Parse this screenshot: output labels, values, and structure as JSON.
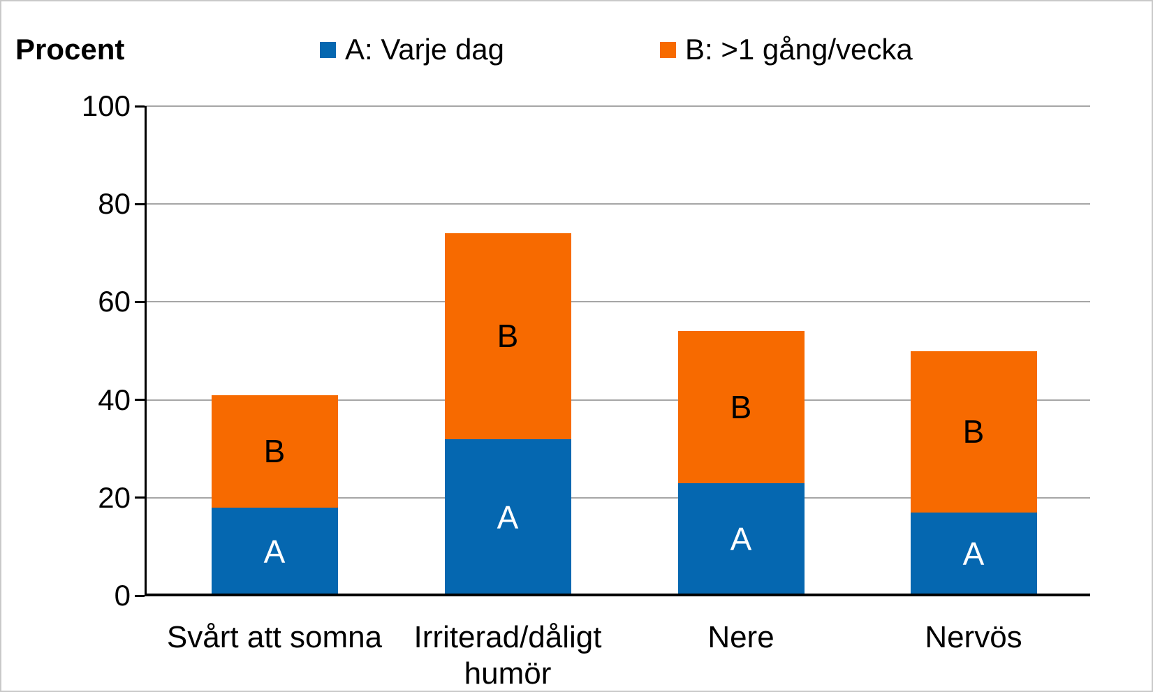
{
  "chart_data": {
    "type": "bar",
    "stacked": true,
    "ylabel": "Procent",
    "categories": [
      "Svårt att somna",
      "Irriterad/dåligt humör",
      "Nere",
      "Nervös"
    ],
    "series": [
      {
        "name": "A: Varje dag",
        "bar_label": "A",
        "color": "#0567b0",
        "label_color": "#ffffff",
        "values": [
          18,
          32,
          23,
          17
        ]
      },
      {
        "name": "B: >1 gång/vecka",
        "bar_label": "B",
        "color": "#f76a00",
        "label_color": "#000000",
        "values": [
          23,
          42,
          31,
          33
        ]
      }
    ],
    "yticks": [
      0,
      20,
      40,
      60,
      80,
      100
    ],
    "ylim": [
      0,
      100
    ],
    "grid": "horizontal",
    "legend_position": "top",
    "axis_color": "#000000",
    "gridline_color": "#a6a6a6"
  }
}
